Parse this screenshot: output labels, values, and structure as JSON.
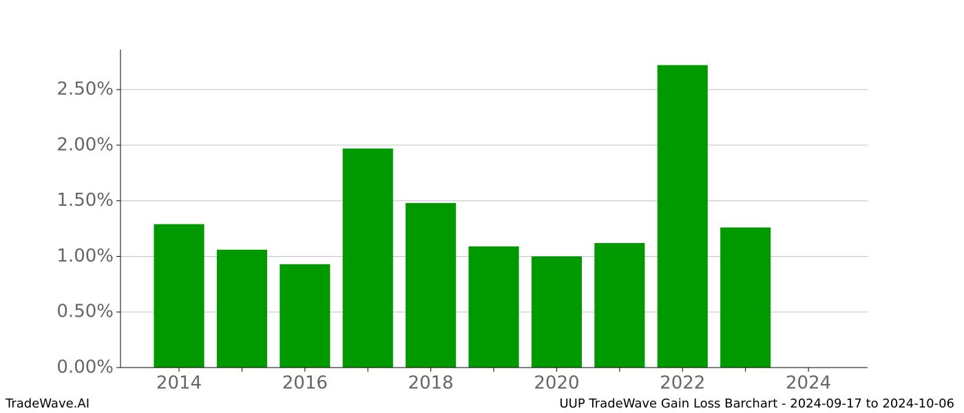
{
  "chart_data": {
    "type": "bar",
    "title": "UUP TradeWave Gain Loss Barchart - 2024-09-17 to 2024-10-06",
    "source": "TradeWave.AI",
    "x": [
      2014,
      2015,
      2016,
      2017,
      2018,
      2019,
      2020,
      2021,
      2022,
      2023
    ],
    "values": [
      1.29,
      1.06,
      0.93,
      1.97,
      1.48,
      1.09,
      1.0,
      1.12,
      2.72,
      1.26
    ],
    "color": "#009900",
    "xlim": [
      2013.07,
      2024.94
    ],
    "xticks": [
      2014,
      2016,
      2018,
      2020,
      2022,
      2024
    ],
    "xminorticks": [
      2015,
      2017,
      2019,
      2021,
      2023
    ],
    "ylim": [
      0,
      2.86
    ],
    "yticks": [
      {
        "value": 0,
        "label": "0.00%"
      },
      {
        "value": 0.5,
        "label": "0.50%"
      },
      {
        "value": 1,
        "label": "1.00%"
      },
      {
        "value": 1.5,
        "label": "1.50%"
      },
      {
        "value": 2,
        "label": "2.00%"
      },
      {
        "value": 2.5,
        "label": "2.50%"
      }
    ],
    "grid": true
  }
}
